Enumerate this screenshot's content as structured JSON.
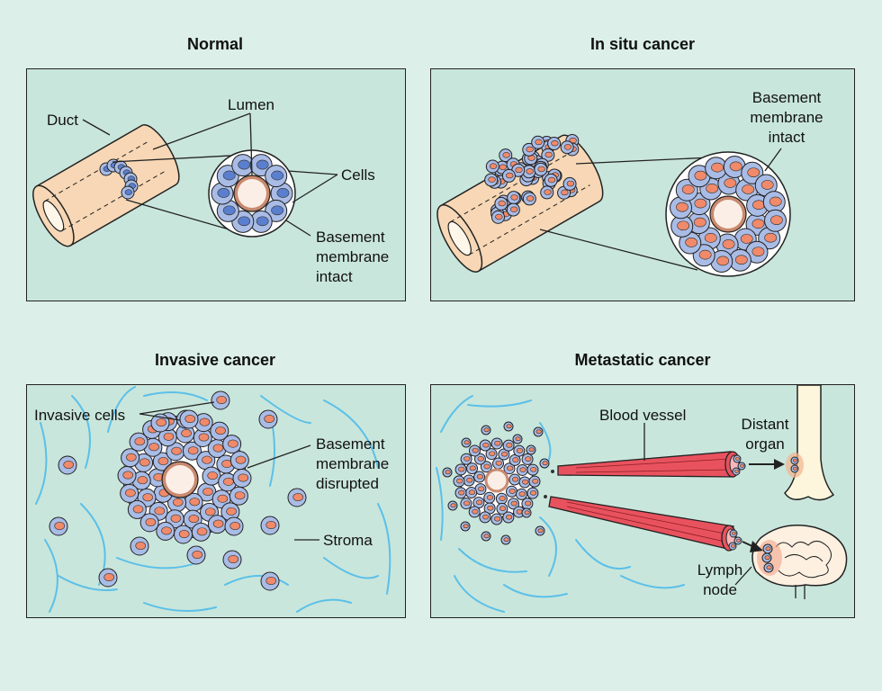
{
  "panels": {
    "normal": {
      "title": "Normal",
      "labels": {
        "duct": "Duct",
        "lumen": "Lumen",
        "cells": "Cells",
        "basement_1": "Basement",
        "basement_2": "membrane",
        "basement_3": "intact"
      }
    },
    "in_situ": {
      "title": "In situ cancer",
      "labels": {
        "basement_1": "Basement",
        "basement_2": "membrane",
        "basement_3": "intact"
      }
    },
    "invasive": {
      "title": "Invasive cancer",
      "labels": {
        "invasive_cells": "Invasive cells",
        "basement_1": "Basement",
        "basement_2": "membrane",
        "basement_3": "disrupted",
        "stroma": "Stroma"
      }
    },
    "metastatic": {
      "title": "Metastatic cancer",
      "labels": {
        "blood_vessel": "Blood vessel",
        "distant_1": "Distant",
        "distant_2": "organ",
        "lymph_1": "Lymph",
        "lymph_2": "node"
      }
    }
  },
  "colors": {
    "background": "#dcefe9",
    "panel_fill": "#c9e6dc",
    "duct": "#f7d7b5",
    "cell": "#a9bce6",
    "nucleus_normal": "#5b7fcf",
    "nucleus_cancer": "#f08a6a",
    "vessel": "#e8525e",
    "stroma": "#5bc0e8",
    "bone": "#fdf6dc"
  }
}
